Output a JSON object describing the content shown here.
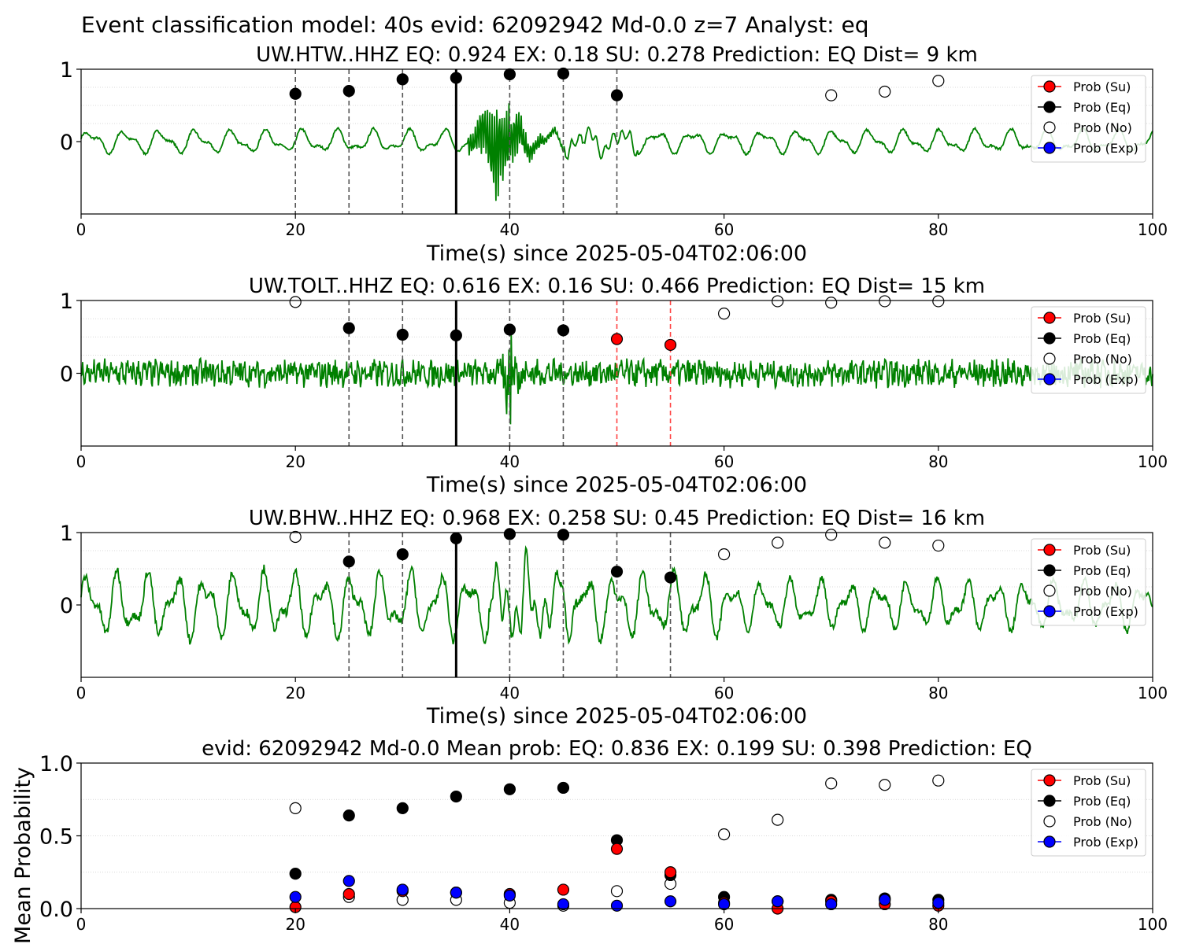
{
  "figure": {
    "suptitle": "Event classification model: 40s evid: 62092942 Md-0.0 z=7 Analyst: eq"
  },
  "legend": {
    "entries": [
      {
        "label": "Prob (Su)",
        "color": "#ff0000"
      },
      {
        "label": "Prob (Eq)",
        "color": "#000000"
      },
      {
        "label": "Prob (No)",
        "color": "#ffffff"
      },
      {
        "label": "Prob (Exp)",
        "color": "#0000ff"
      }
    ],
    "placement": "upper-right"
  },
  "colors": {
    "waveform": "#008000",
    "dash_eq": "#555555",
    "dash_su": "#ff4444",
    "origin_line": "#000000"
  },
  "chart_data": [
    {
      "type": "line",
      "title": "UW.HTW..HHZ   EQ: 0.924  EX: 0.18  SU: 0.278   Prediction: EQ    Dist= 9 km",
      "xlabel": "Time(s) since 2025-05-04T02:06:00",
      "xlim": [
        0,
        100
      ],
      "ylim": [
        -1,
        1
      ],
      "xticks": [
        "0",
        "20",
        "40",
        "60",
        "80",
        "100"
      ],
      "yticks": [
        "1",
        "0"
      ],
      "grid": "horizontal dotted",
      "origin_time": 35,
      "waveform": {
        "name": "UW.HTW..HHZ",
        "style": "smooth low-frequency with sharp arrival near 38-40 s, amplitude ~0.2 background, spike to ~0.9"
      },
      "window_lines": [
        {
          "x": 20,
          "class": "Eq"
        },
        {
          "x": 25,
          "class": "Eq"
        },
        {
          "x": 30,
          "class": "Eq"
        },
        {
          "x": 40,
          "class": "Eq"
        },
        {
          "x": 45,
          "class": "Eq"
        },
        {
          "x": 50,
          "class": "Eq"
        }
      ],
      "series": [
        {
          "name": "Prob (Eq)",
          "x": [
            20,
            25,
            30,
            35,
            40,
            45,
            50
          ],
          "y": [
            0.66,
            0.7,
            0.86,
            0.88,
            0.93,
            0.94,
            0.64
          ]
        },
        {
          "name": "Prob (No)",
          "x": [
            70,
            75,
            80
          ],
          "y": [
            0.64,
            0.69,
            0.84
          ]
        }
      ]
    },
    {
      "type": "line",
      "title": "UW.TOLT..HHZ   EQ: 0.616  EX: 0.16  SU: 0.466   Prediction: EQ    Dist= 15 km",
      "xlabel": "Time(s) since 2025-05-04T02:06:00",
      "xlim": [
        0,
        100
      ],
      "ylim": [
        -1,
        1
      ],
      "xticks": [
        "0",
        "20",
        "40",
        "60",
        "80",
        "100"
      ],
      "yticks": [
        "1",
        "0"
      ],
      "grid": "horizontal dotted",
      "origin_time": 35,
      "waveform": {
        "name": "UW.TOLT..HHZ",
        "style": "noisy high-frequency, amplitude ~0.2, spike near 40 s"
      },
      "window_lines": [
        {
          "x": 25,
          "class": "Eq"
        },
        {
          "x": 30,
          "class": "Eq"
        },
        {
          "x": 40,
          "class": "Eq"
        },
        {
          "x": 45,
          "class": "Eq"
        },
        {
          "x": 50,
          "class": "Su"
        },
        {
          "x": 55,
          "class": "Su"
        }
      ],
      "series": [
        {
          "name": "Prob (Eq)",
          "x": [
            25,
            30,
            35,
            40,
            45
          ],
          "y": [
            0.62,
            0.53,
            0.52,
            0.6,
            0.59
          ]
        },
        {
          "name": "Prob (Su)",
          "x": [
            50,
            55
          ],
          "y": [
            0.47,
            0.39
          ]
        },
        {
          "name": "Prob (No)",
          "x": [
            20,
            60,
            65,
            70,
            75,
            80
          ],
          "y": [
            0.98,
            0.82,
            0.99,
            0.97,
            0.99,
            0.99
          ]
        }
      ]
    },
    {
      "type": "line",
      "title": "UW.BHW..HHZ   EQ: 0.968  EX: 0.258  SU: 0.45   Prediction: EQ    Dist= 16 km",
      "xlabel": "Time(s) since 2025-05-04T02:06:00",
      "xlim": [
        0,
        100
      ],
      "ylim": [
        -1,
        1
      ],
      "xticks": [
        "0",
        "20",
        "40",
        "60",
        "80",
        "100"
      ],
      "yticks": [
        "1",
        "0"
      ],
      "grid": "horizontal dotted",
      "origin_time": 35,
      "waveform": {
        "name": "UW.BHW..HHZ",
        "style": "large low-frequency oscillations amplitude ~0.5, strong near 40 s"
      },
      "window_lines": [
        {
          "x": 25,
          "class": "Eq"
        },
        {
          "x": 30,
          "class": "Eq"
        },
        {
          "x": 40,
          "class": "Eq"
        },
        {
          "x": 45,
          "class": "Eq"
        },
        {
          "x": 50,
          "class": "Eq"
        },
        {
          "x": 55,
          "class": "Eq"
        }
      ],
      "series": [
        {
          "name": "Prob (Eq)",
          "x": [
            25,
            30,
            35,
            40,
            45,
            50,
            55
          ],
          "y": [
            0.6,
            0.7,
            0.92,
            0.98,
            0.97,
            0.46,
            0.38
          ]
        },
        {
          "name": "Prob (No)",
          "x": [
            20,
            60,
            65,
            70,
            75,
            80
          ],
          "y": [
            0.94,
            0.7,
            0.86,
            0.97,
            0.86,
            0.82
          ]
        }
      ]
    },
    {
      "type": "scatter",
      "title": "evid: 62092942  Md-0.0   Mean prob:   EQ: 0.836  EX: 0.199  SU: 0.398   Prediction: EQ",
      "xlabel": "",
      "ylabel": "Mean Probability",
      "xlim": [
        0,
        100
      ],
      "ylim": [
        0,
        1
      ],
      "xticks": [
        "0",
        "20",
        "40",
        "60",
        "80",
        "100"
      ],
      "yticks": [
        "1.0",
        "0.5",
        "0.0"
      ],
      "grid": "horizontal dotted",
      "series": [
        {
          "name": "Prob (No)",
          "x": [
            20,
            25,
            30,
            35,
            40,
            45,
            50,
            55,
            60,
            65,
            70,
            75,
            80
          ],
          "y": [
            0.69,
            0.08,
            0.06,
            0.06,
            0.04,
            0.02,
            0.12,
            0.17,
            0.51,
            0.61,
            0.86,
            0.85,
            0.88
          ]
        },
        {
          "name": "Prob (Eq)",
          "x": [
            20,
            25,
            30,
            35,
            40,
            45,
            50,
            55,
            60,
            65,
            70,
            75,
            80
          ],
          "y": [
            0.24,
            0.64,
            0.69,
            0.77,
            0.82,
            0.83,
            0.47,
            0.23,
            0.08,
            0.05,
            0.06,
            0.07,
            0.06
          ]
        },
        {
          "name": "Prob (Su)",
          "x": [
            20,
            25,
            30,
            35,
            40,
            45,
            50,
            55,
            60,
            65,
            70,
            75,
            80
          ],
          "y": [
            0.01,
            0.1,
            0.12,
            0.11,
            0.1,
            0.13,
            0.41,
            0.25,
            0.04,
            0.0,
            0.05,
            0.03,
            0.02
          ]
        },
        {
          "name": "Prob (Exp)",
          "x": [
            20,
            25,
            30,
            35,
            40,
            45,
            50,
            55,
            60,
            65,
            70,
            75,
            80
          ],
          "y": [
            0.08,
            0.19,
            0.13,
            0.11,
            0.09,
            0.03,
            0.02,
            0.05,
            0.03,
            0.05,
            0.03,
            0.06,
            0.04
          ]
        }
      ]
    }
  ]
}
